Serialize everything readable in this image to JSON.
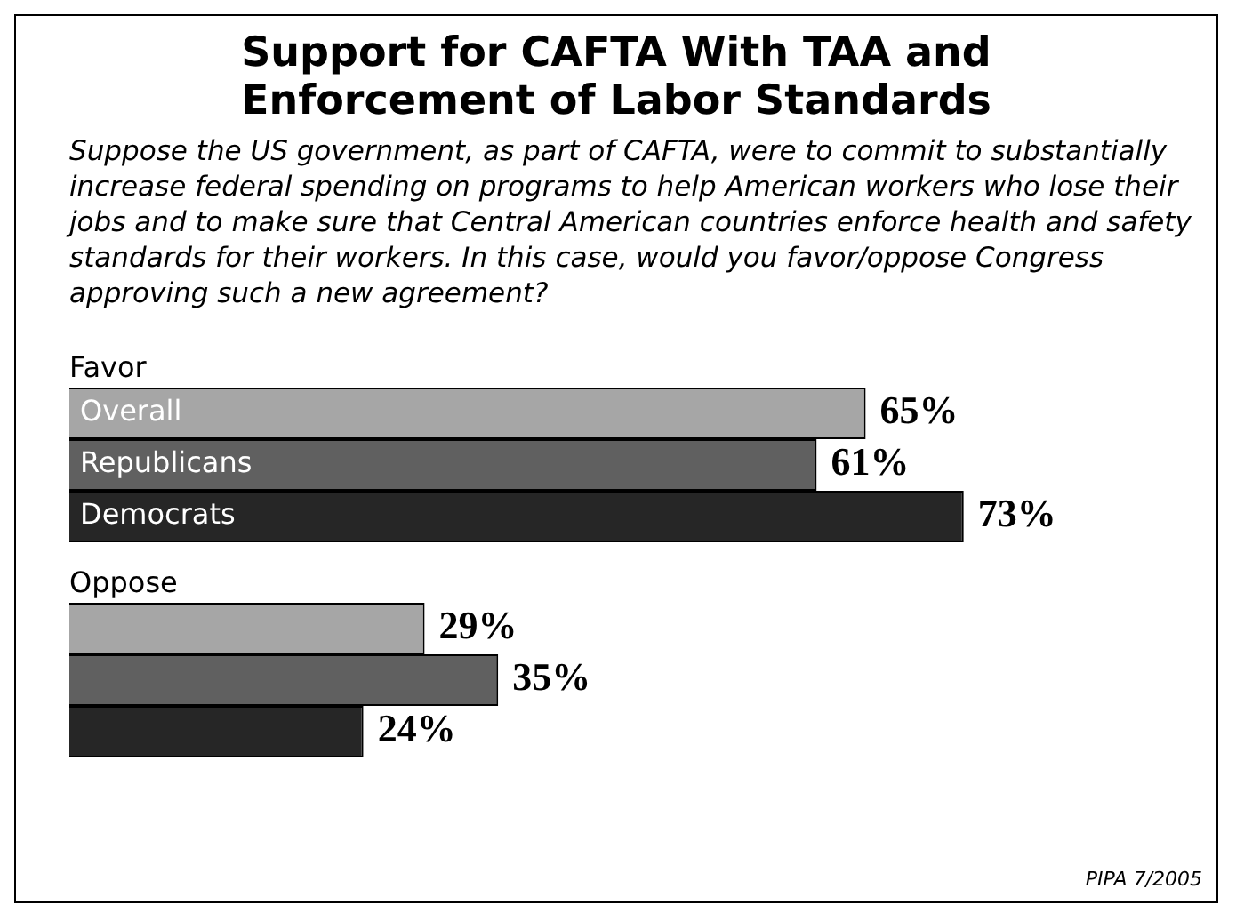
{
  "chart_data": {
    "type": "bar",
    "orientation": "horizontal",
    "title": "Support for CAFTA With TAA and Enforcement of Labor Standards",
    "subtitle": "Suppose the US government, as part of CAFTA, were to commit to substantially increase federal spending on programs to help American workers who lose their jobs and to make sure that Central American countries enforce health and safety standards for their workers. In this case, would you favor/oppose Congress approving such a new agreement?",
    "categories": [
      "Favor",
      "Oppose"
    ],
    "series": [
      {
        "name": "Overall",
        "color": "#a6a6a6",
        "values": [
          65,
          29
        ],
        "value_labels": [
          "65%",
          "29%"
        ]
      },
      {
        "name": "Republicans",
        "color": "#606060",
        "values": [
          61,
          35
        ],
        "value_labels": [
          "61%",
          "35%"
        ]
      },
      {
        "name": "Democrats",
        "color": "#262626",
        "values": [
          73,
          24
        ],
        "value_labels": [
          "73%",
          "24%"
        ]
      }
    ],
    "legend": false,
    "annotations": [
      "PIPA 7/2005"
    ]
  }
}
